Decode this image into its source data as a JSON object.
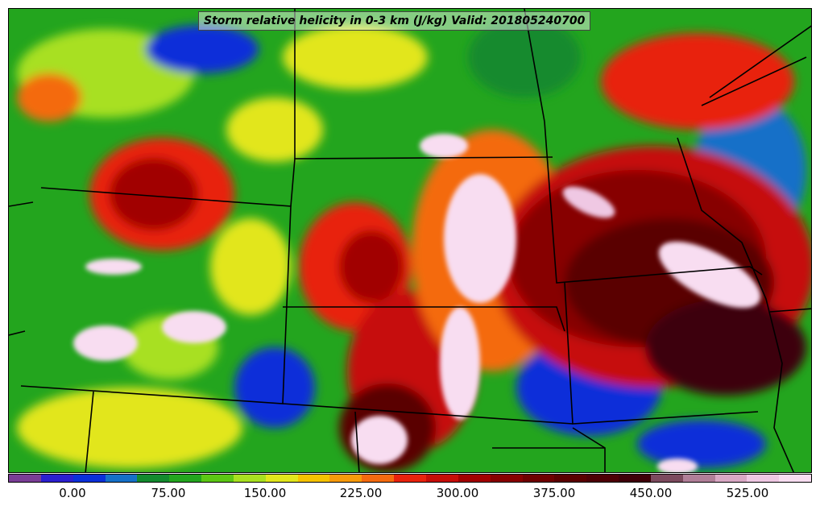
{
  "title": "Storm relative helicity in 0-3 km (J/kg) Valid: 201805240700",
  "colorbar": {
    "colors": [
      "#7a3d96",
      "#2b1fcf",
      "#0a2fd9",
      "#1570c8",
      "#138a2e",
      "#23a51e",
      "#5cc714",
      "#a8e020",
      "#e2e61c",
      "#f6c200",
      "#f79a0a",
      "#f46a0f",
      "#e8220c",
      "#c60d07",
      "#a10000",
      "#870000",
      "#6e0000",
      "#5a0000",
      "#4d0005",
      "#3e0008",
      "#7c4a5e",
      "#b17f98",
      "#d9a8c4",
      "#efc8e3",
      "#f8ddf1"
    ],
    "ticks": [
      "0.00",
      "75.00",
      "150.00",
      "225.00",
      "300.00",
      "375.00",
      "450.00",
      "525.00"
    ]
  }
}
